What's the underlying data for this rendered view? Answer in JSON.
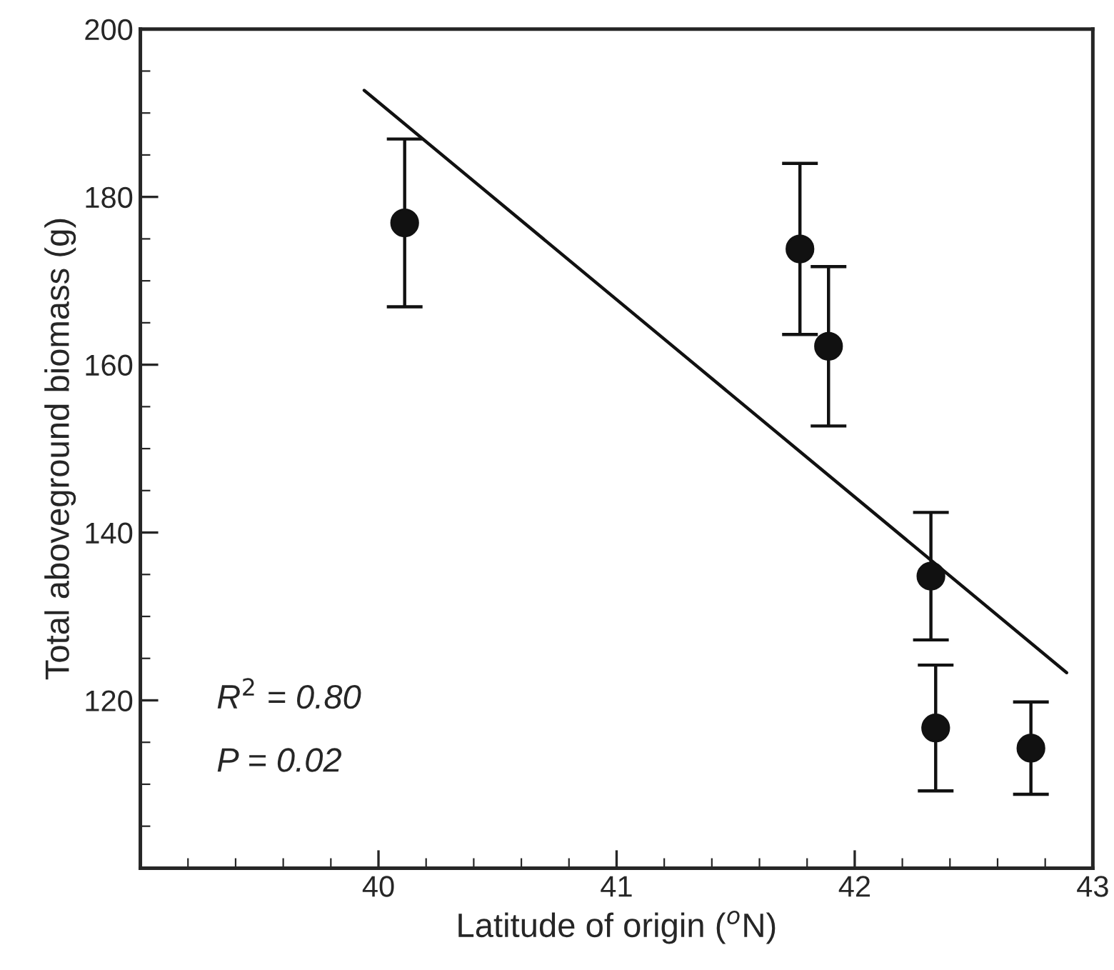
{
  "chart_data": {
    "type": "scatter",
    "xlabel": "Latitude of origin ($^{o}$N)",
    "ylabel": "Total aboveground biomass (g)",
    "xlim": [
      39,
      43
    ],
    "xticks": [
      {
        "value": 39,
        "label": null
      },
      40,
      41,
      42,
      43
    ],
    "ylim": [
      100,
      200
    ],
    "yticks": [
      {
        "value": 100,
        "label": null
      },
      120,
      140,
      160,
      180,
      200
    ],
    "grid": false,
    "series": [
      {
        "marker": "circle",
        "color": "#111111",
        "x": [
          40.11,
          41.77,
          41.89,
          42.32,
          42.34,
          42.74
        ],
        "values": [
          176.9,
          173.8,
          162.2,
          134.8,
          116.7,
          114.3
        ],
        "errors": [
          10,
          10.2,
          9.5,
          7.6,
          7.5,
          5.5
        ]
      },
      {
        "type": "line",
        "color": "#111111",
        "x": [
          39.94,
          42.89
        ],
        "values": [
          192.7,
          123.3
        ],
        "line_style": "solid"
      }
    ],
    "annotations": [
      "R$^{2}$ = 0.80",
      "P = 0.02"
    ]
  }
}
